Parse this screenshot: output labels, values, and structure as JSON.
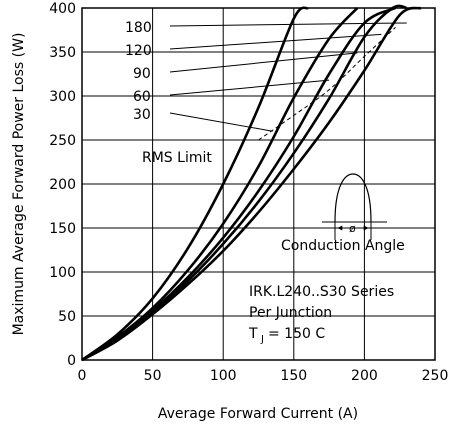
{
  "chart_data": {
    "type": "line",
    "xlabel": "Average Forward Current (A)",
    "ylabel": "Maximum Average Forward Power Loss (W)",
    "xlim": [
      0,
      250
    ],
    "ylim": [
      0,
      400
    ],
    "x_ticks": [
      "0",
      "50",
      "100",
      "150",
      "200",
      "250"
    ],
    "y_ticks": [
      "0",
      "50",
      "100",
      "150",
      "200",
      "250",
      "300",
      "350",
      "400"
    ],
    "grid": true,
    "series": [
      {
        "name": "180",
        "x": [
          0,
          25,
          50,
          75,
          100,
          125,
          150,
          175,
          200,
          225,
          240
        ],
        "y": [
          0,
          22,
          52,
          86,
          124,
          168,
          217,
          270,
          329,
          392,
          400
        ]
      },
      {
        "name": "120",
        "x": [
          0,
          25,
          50,
          75,
          100,
          125,
          150,
          175,
          200,
          220,
          230
        ],
        "y": [
          0,
          23,
          54,
          90,
          132,
          180,
          235,
          297,
          367,
          400,
          400
        ]
      },
      {
        "name": "90",
        "x": [
          0,
          25,
          50,
          75,
          100,
          125,
          150,
          175,
          200,
          222
        ],
        "y": [
          0,
          24,
          56,
          94,
          139,
          192,
          254,
          325,
          383,
          400
        ]
      },
      {
        "name": "60",
        "x": [
          0,
          25,
          50,
          75,
          100,
          125,
          150,
          175,
          195
        ],
        "y": [
          0,
          26,
          59,
          102,
          155,
          220,
          298,
          365,
          400
        ]
      },
      {
        "name": "30",
        "x": [
          0,
          25,
          50,
          75,
          100,
          125,
          150,
          160
        ],
        "y": [
          0,
          29,
          70,
          127,
          200,
          287,
          388,
          400
        ]
      }
    ],
    "curve_labels": [
      "180",
      "120",
      "90",
      "60",
      "30"
    ],
    "annotations": {
      "rms_limit": "RMS Limit",
      "conduction_angle": "Conduction Angle",
      "phi_symbol": "ø",
      "series_name": "IRK.L240..S30 Series",
      "per_junction": "Per Junction",
      "tj_t": "T",
      "tj_j": "J",
      "tj_value": " = 150 C"
    }
  }
}
